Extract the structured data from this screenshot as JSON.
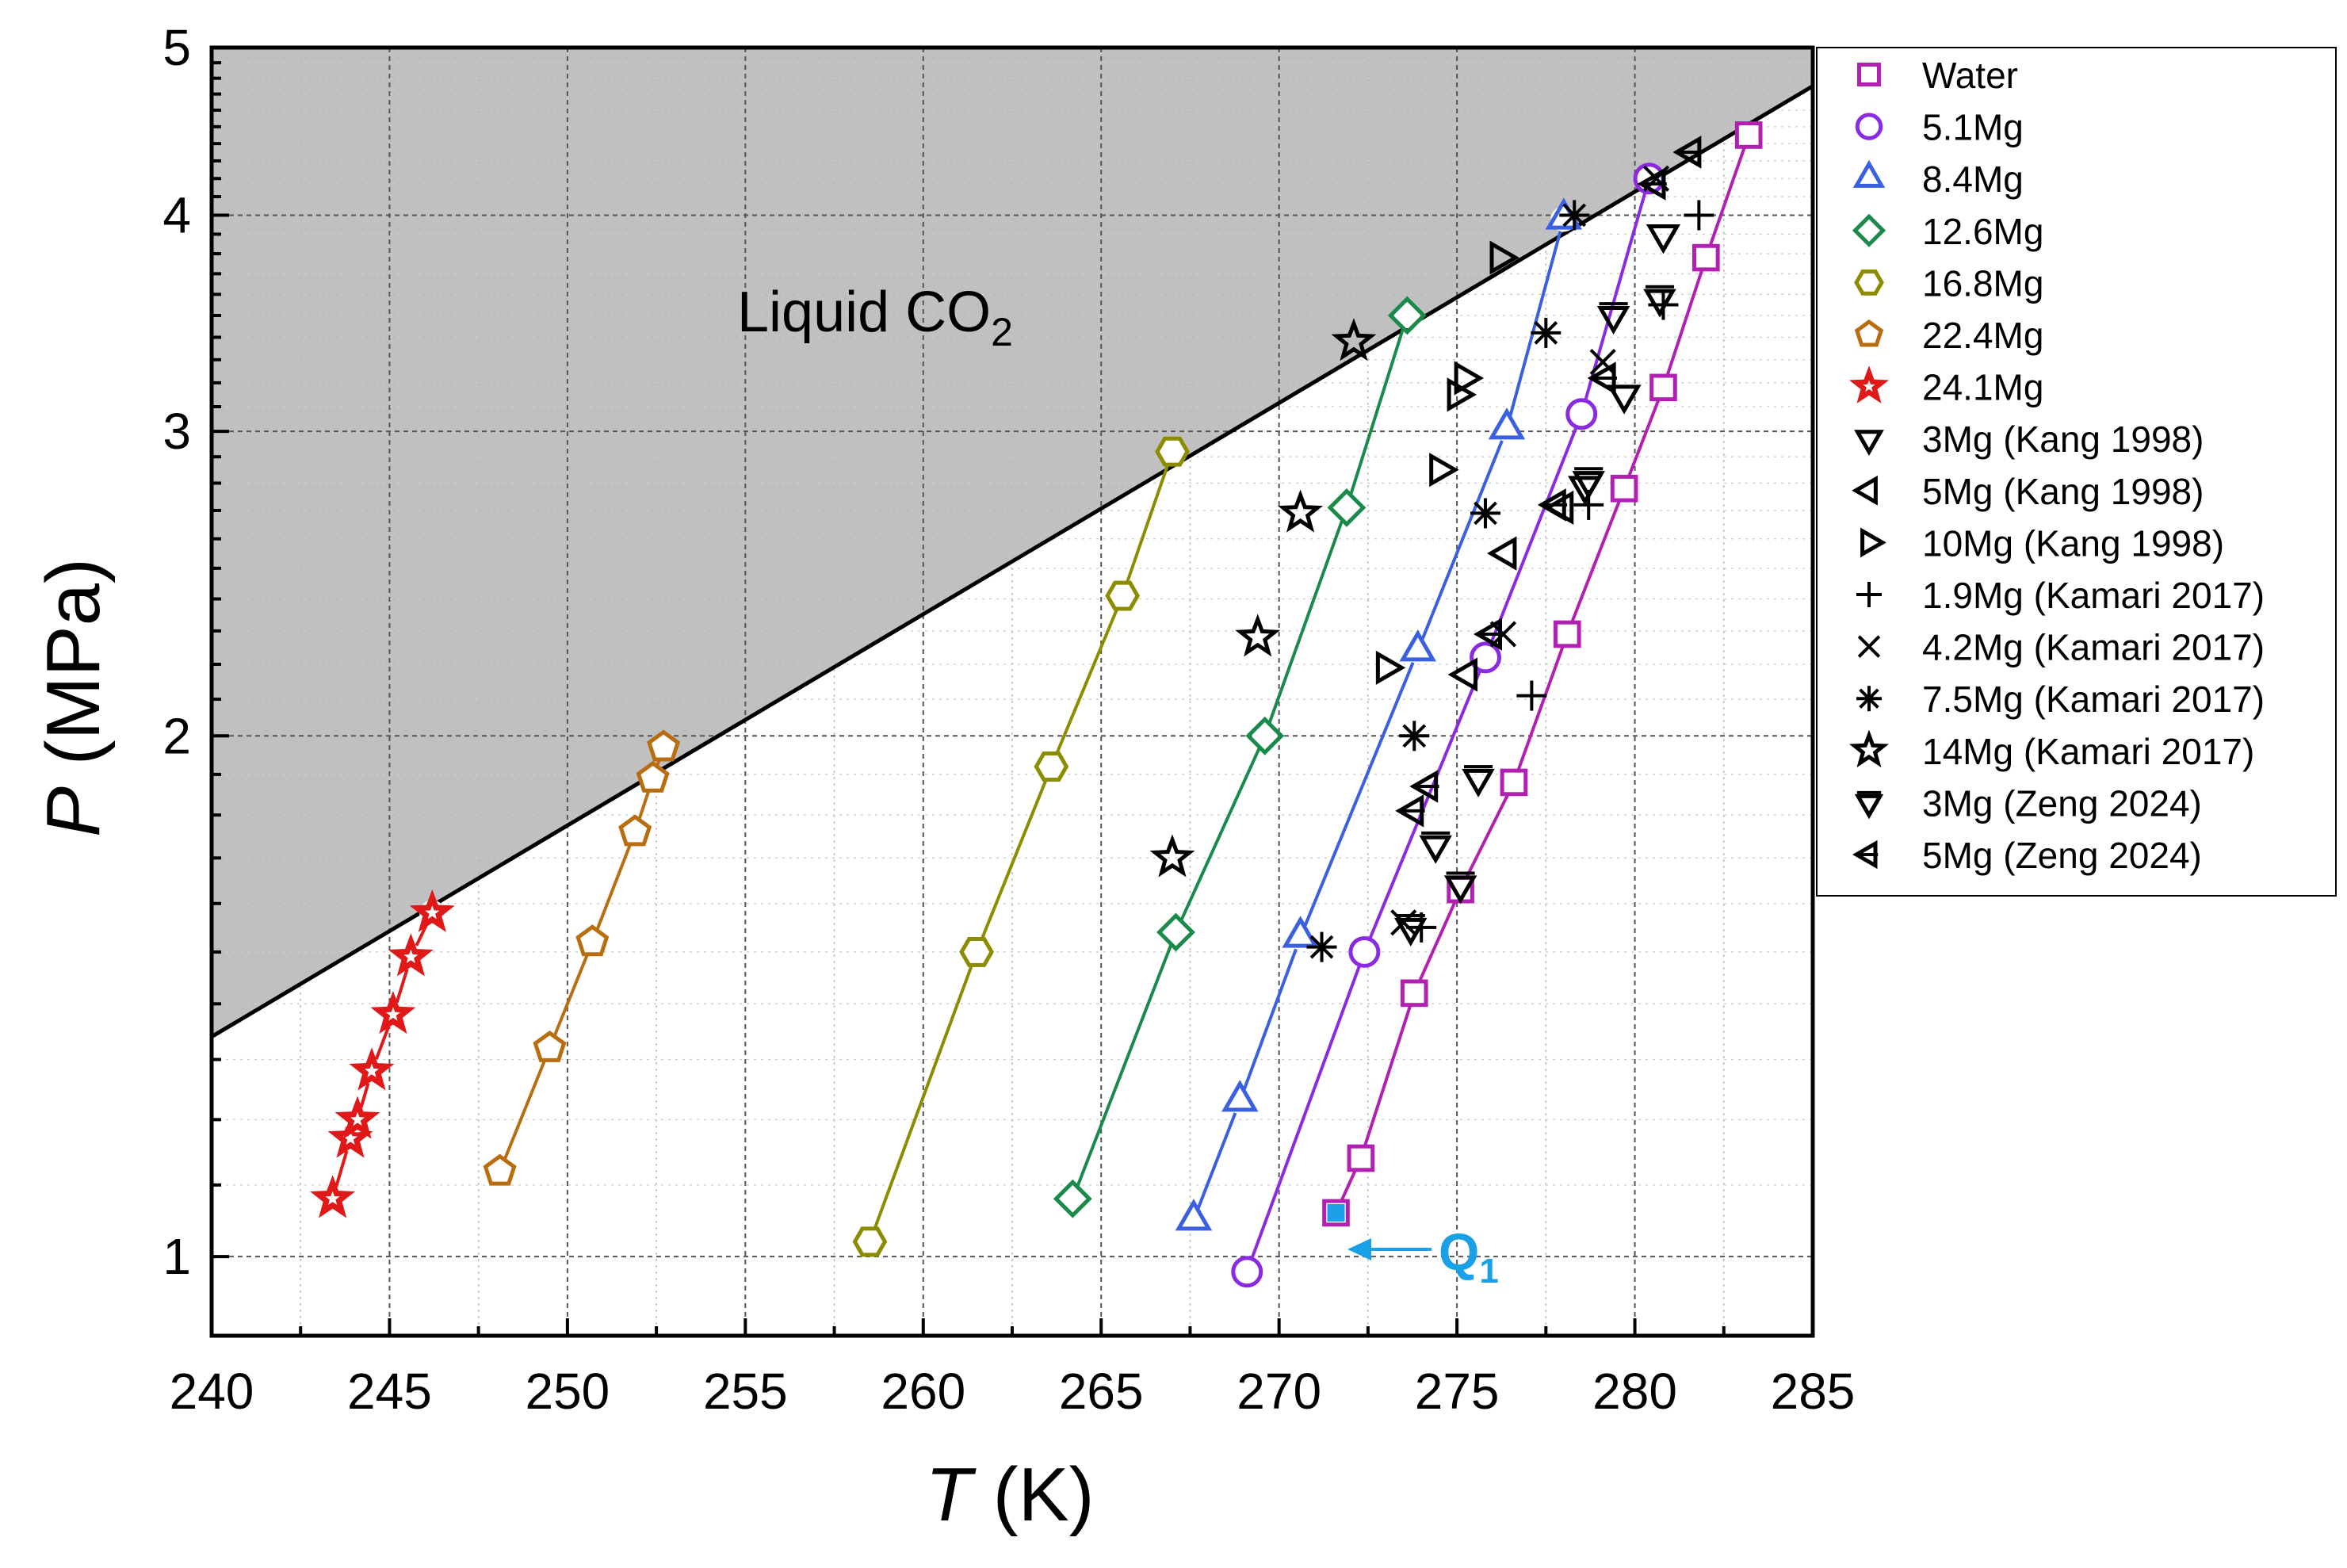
{
  "chart_data": {
    "type": "scatter",
    "title": "",
    "xlabel": {
      "symbol": "T",
      "unit": "(K)"
    },
    "ylabel": {
      "symbol": "P",
      "unit": "(MPa)"
    },
    "xlim": [
      240,
      285
    ],
    "ylim": [
      0.9,
      5
    ],
    "y_scale": "log",
    "x_ticks": [
      240,
      245,
      250,
      255,
      260,
      265,
      270,
      275,
      280,
      285
    ],
    "y_ticks": [
      1,
      2,
      3,
      4,
      5
    ],
    "grid": true,
    "legend_position": "right",
    "region_label": {
      "main": "Liquid CO",
      "sub": "2"
    },
    "boundary_line": {
      "x": [
        240,
        285
      ],
      "y": [
        1.34,
        4.75
      ],
      "color": "#000000"
    },
    "annotation": {
      "main": "Q",
      "sub": "1",
      "x": 271.6,
      "y": 1.06,
      "color": "#1aa0e6"
    },
    "series": [
      {
        "name": "Water",
        "marker": "square",
        "color": "#b220b2",
        "line": true,
        "points": [
          [
            271.6,
            1.06
          ],
          [
            272.3,
            1.14
          ],
          [
            273.8,
            1.42
          ],
          [
            275.1,
            1.63
          ],
          [
            276.6,
            1.88
          ],
          [
            278.1,
            2.29
          ],
          [
            279.7,
            2.78
          ],
          [
            280.8,
            3.18
          ],
          [
            282.0,
            3.78
          ],
          [
            283.2,
            4.45
          ]
        ]
      },
      {
        "name": "5.1Mg",
        "marker": "circle",
        "color": "#8a2be2",
        "line": true,
        "points": [
          [
            269.1,
            0.98
          ],
          [
            272.4,
            1.5
          ],
          [
            275.8,
            2.22
          ],
          [
            278.5,
            3.07
          ],
          [
            280.4,
            4.2
          ]
        ]
      },
      {
        "name": "8.4Mg",
        "marker": "triangle-up",
        "color": "#3a5fe0",
        "line": true,
        "points": [
          [
            267.6,
            1.05
          ],
          [
            268.9,
            1.23
          ],
          [
            270.6,
            1.53
          ],
          [
            273.9,
            2.24
          ],
          [
            276.4,
            3.01
          ],
          [
            278.0,
            3.98
          ]
        ]
      },
      {
        "name": "12.6Mg",
        "marker": "diamond",
        "color": "#1a8a4a",
        "line": true,
        "points": [
          [
            264.2,
            1.08
          ],
          [
            267.1,
            1.54
          ],
          [
            269.6,
            2.0
          ],
          [
            271.9,
            2.71
          ],
          [
            273.6,
            3.5
          ]
        ]
      },
      {
        "name": "16.8Mg",
        "marker": "hexagon",
        "color": "#8c8c00",
        "line": true,
        "points": [
          [
            258.5,
            1.02
          ],
          [
            261.5,
            1.5
          ],
          [
            263.6,
            1.92
          ],
          [
            265.6,
            2.41
          ],
          [
            267.0,
            2.92
          ]
        ]
      },
      {
        "name": "22.4Mg",
        "marker": "pentagon",
        "color": "#b86e10",
        "line": true,
        "points": [
          [
            248.1,
            1.12
          ],
          [
            249.5,
            1.32
          ],
          [
            250.7,
            1.52
          ],
          [
            251.9,
            1.76
          ],
          [
            252.4,
            1.89
          ],
          [
            252.7,
            1.97
          ]
        ]
      },
      {
        "name": "24.1Mg",
        "marker": "star-filled",
        "color": "#e01818",
        "line": true,
        "points": [
          [
            243.4,
            1.08
          ],
          [
            243.9,
            1.17
          ],
          [
            244.1,
            1.2
          ],
          [
            244.5,
            1.28
          ],
          [
            245.1,
            1.38
          ],
          [
            245.6,
            1.49
          ],
          [
            246.2,
            1.58
          ]
        ]
      },
      {
        "name": "3Mg (Kang 1998)",
        "marker": "triangle-down",
        "color": "#000000",
        "line": false,
        "points": [
          [
            278.6,
            2.79
          ],
          [
            280.8,
            3.9
          ],
          [
            279.7,
            3.15
          ]
        ]
      },
      {
        "name": "5Mg (Kang 1998)",
        "marker": "triangle-left",
        "color": "#000000",
        "line": false,
        "points": [
          [
            276.4,
            2.55
          ],
          [
            275.3,
            2.17
          ],
          [
            278.0,
            2.71
          ]
        ]
      },
      {
        "name": "10Mg (Kang 1998)",
        "marker": "triangle-right",
        "color": "#000000",
        "line": false,
        "points": [
          [
            275.2,
            3.22
          ],
          [
            274.5,
            2.85
          ],
          [
            273.0,
            2.19
          ],
          [
            276.2,
            3.78
          ],
          [
            275.0,
            3.15
          ]
        ]
      },
      {
        "name": "1.9Mg (Kamari 2017)",
        "marker": "plus",
        "color": "#000000",
        "line": false,
        "points": [
          [
            274.0,
            1.55
          ],
          [
            277.1,
            2.11
          ],
          [
            278.7,
            2.72
          ],
          [
            280.8,
            3.55
          ],
          [
            281.8,
            4.0
          ]
        ]
      },
      {
        "name": "4.2Mg (Kamari 2017)",
        "marker": "x",
        "color": "#000000",
        "line": false,
        "points": [
          [
            273.5,
            1.56
          ],
          [
            276.3,
            2.29
          ],
          [
            279.1,
            3.29
          ],
          [
            280.6,
            4.2
          ]
        ]
      },
      {
        "name": "7.5Mg (Kamari 2017)",
        "marker": "asterisk",
        "color": "#000000",
        "line": false,
        "points": [
          [
            271.2,
            1.51
          ],
          [
            273.8,
            2.0
          ],
          [
            275.8,
            2.69
          ],
          [
            277.5,
            3.42
          ],
          [
            278.3,
            4.0
          ]
        ]
      },
      {
        "name": "14Mg (Kamari 2017)",
        "marker": "star-open",
        "color": "#000000",
        "line": false,
        "points": [
          [
            267.0,
            1.7
          ],
          [
            269.4,
            2.28
          ],
          [
            270.6,
            2.69
          ],
          [
            272.1,
            3.38
          ]
        ]
      },
      {
        "name": "3Mg (Zeng 2024)",
        "marker": "triangle-down-bar",
        "color": "#000000",
        "line": false,
        "points": [
          [
            273.7,
            1.55
          ],
          [
            274.4,
            1.73
          ],
          [
            275.1,
            1.64
          ],
          [
            275.6,
            1.89
          ],
          [
            278.7,
            2.81
          ],
          [
            280.7,
            3.58
          ],
          [
            279.4,
            3.5
          ]
        ]
      },
      {
        "name": "5Mg (Zeng 2024)",
        "marker": "triangle-left-bar",
        "color": "#000000",
        "line": false,
        "points": [
          [
            273.8,
            1.81
          ],
          [
            274.2,
            1.87
          ],
          [
            276.0,
            2.29
          ],
          [
            277.8,
            2.72
          ],
          [
            279.2,
            3.22
          ],
          [
            280.6,
            4.17
          ],
          [
            281.6,
            4.35
          ]
        ]
      }
    ]
  }
}
